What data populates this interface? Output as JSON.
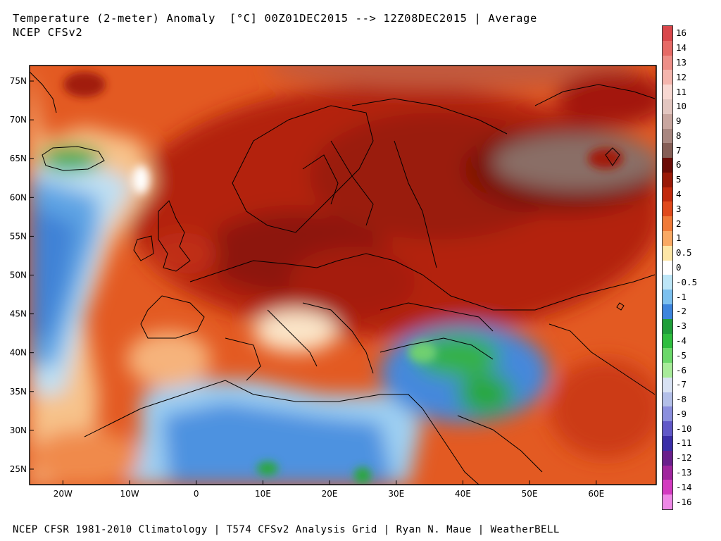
{
  "header": {
    "title": "Temperature (2-meter) Anomaly  [°C] 00Z01DEC2015 --> 12Z08DEC2015 | Average",
    "subtitle": "NCEP CFSv2"
  },
  "footer": {
    "text": "NCEP CFSR 1981-2010 Climatology | T574 CFSv2 Analysis Grid | Ryan N. Maue | WeatherBELL"
  },
  "map": {
    "lat_labels": [
      "75N",
      "70N",
      "65N",
      "60N",
      "55N",
      "50N",
      "45N",
      "40N",
      "35N",
      "30N",
      "25N"
    ],
    "lon_labels": [
      "20W",
      "10W",
      "0",
      "10E",
      "20E",
      "30E",
      "40E",
      "50E",
      "60E"
    ],
    "lat_values": [
      75,
      70,
      65,
      60,
      55,
      50,
      45,
      40,
      35,
      30,
      25
    ],
    "lon_values": [
      -20,
      -10,
      0,
      10,
      20,
      30,
      40,
      50,
      60
    ],
    "lon_range": [
      -25,
      69
    ],
    "lat_range": [
      23,
      77
    ]
  },
  "legend": {
    "items": [
      {
        "label": "16",
        "color": "#d9474b"
      },
      {
        "label": "14",
        "color": "#e66a66"
      },
      {
        "label": "13",
        "color": "#ee8f88"
      },
      {
        "label": "12",
        "color": "#f4b5ad"
      },
      {
        "label": "11",
        "color": "#f8d8d2"
      },
      {
        "label": "10",
        "color": "#e3c6c0"
      },
      {
        "label": "9",
        "color": "#c9a69f"
      },
      {
        "label": "8",
        "color": "#a98780"
      },
      {
        "label": "7",
        "color": "#855e56"
      },
      {
        "label": "6",
        "color": "#6b0c07"
      },
      {
        "label": "5",
        "color": "#9a1a08"
      },
      {
        "label": "4",
        "color": "#c22a0d"
      },
      {
        "label": "3",
        "color": "#e04a1c"
      },
      {
        "label": "2",
        "color": "#f07a38"
      },
      {
        "label": "1",
        "color": "#f9a964"
      },
      {
        "label": "0.5",
        "color": "#fde6a6"
      },
      {
        "label": "0",
        "color": "#ffffff"
      },
      {
        "label": "-0.5",
        "color": "#bde6f7"
      },
      {
        "label": "-1",
        "color": "#7cc0ef"
      },
      {
        "label": "-2",
        "color": "#3d85dd"
      },
      {
        "label": "-3",
        "color": "#1f9e3a"
      },
      {
        "label": "-4",
        "color": "#2fbe3f"
      },
      {
        "label": "-5",
        "color": "#6bd86a"
      },
      {
        "label": "-6",
        "color": "#a8eb9a"
      },
      {
        "label": "-7",
        "color": "#d8e2f3"
      },
      {
        "label": "-8",
        "color": "#b3bfe8"
      },
      {
        "label": "-9",
        "color": "#8b8fde"
      },
      {
        "label": "-10",
        "color": "#6158c8"
      },
      {
        "label": "-11",
        "color": "#3b2ea8"
      },
      {
        "label": "-12",
        "color": "#6a1f8c"
      },
      {
        "label": "-13",
        "color": "#a0259e"
      },
      {
        "label": "-14",
        "color": "#d33ac0"
      },
      {
        "label": "-16",
        "color": "#ee88e6"
      }
    ]
  }
}
